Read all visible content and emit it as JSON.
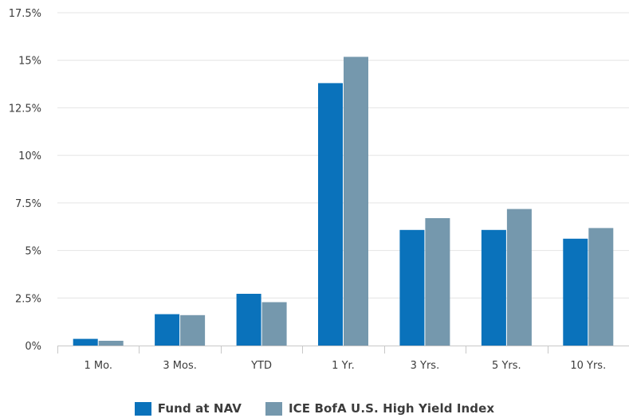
{
  "chart_data": {
    "type": "bar",
    "title": "",
    "xlabel": "",
    "ylabel": "",
    "categories": [
      "1 Mo.",
      "3 Mos.",
      "YTD",
      "1 Yr.",
      "3 Yrs.",
      "5 Yrs.",
      "10 Yrs."
    ],
    "series": [
      {
        "name": "Fund at NAV",
        "color": "#0a72bb",
        "values": [
          0.35,
          1.65,
          2.72,
          13.8,
          6.08,
          6.08,
          5.62
        ]
      },
      {
        "name": "ICE BofA U.S. High Yield Index",
        "color": "#7598ad",
        "values": [
          0.25,
          1.6,
          2.28,
          15.18,
          6.7,
          7.18,
          6.18
        ]
      }
    ],
    "ylim": [
      0,
      17.5
    ],
    "yticks": [
      0,
      2.5,
      5,
      7.5,
      10,
      12.5,
      15,
      17.5
    ],
    "ytick_labels": [
      "0%",
      "2.5%",
      "5%",
      "7.5%",
      "10%",
      "12.5%",
      "15%",
      "17.5%"
    ],
    "grid": true,
    "legend_position": "bottom-center"
  }
}
